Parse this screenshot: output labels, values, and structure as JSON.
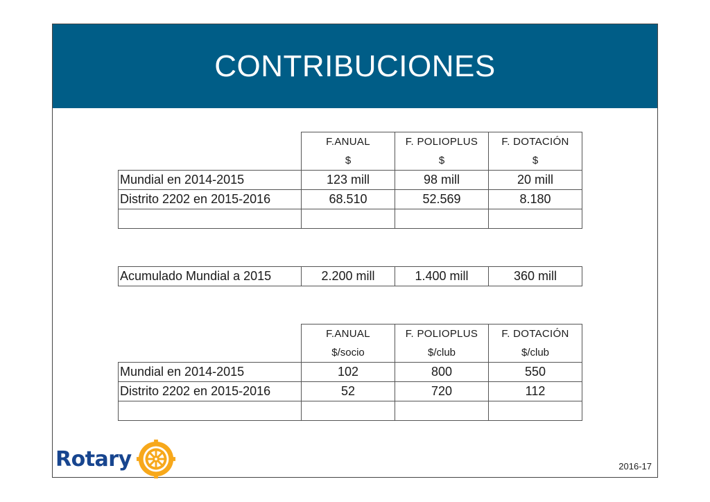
{
  "slide": {
    "title": "CONTRIBUCIONES",
    "year": "2016-17",
    "logo_text": "Rotary",
    "accent_color": "#005d87",
    "logo_color": "#17458f",
    "wheel_color": "#f7a81b"
  },
  "table1": {
    "headers": [
      {
        "name": "F.ANUAL",
        "unit": "$"
      },
      {
        "name": "F. POLIOPLUS",
        "unit": "$"
      },
      {
        "name": "F. DOTACIÓN",
        "unit": "$"
      }
    ],
    "rows": [
      {
        "label": "Mundial en 2014-2015",
        "values": [
          "123 mill",
          "98 mill",
          "20 mill"
        ]
      },
      {
        "label": "Distrito 2202 en 2015-2016",
        "values": [
          "68.510",
          "52.569",
          "8.180"
        ]
      },
      {
        "label": "",
        "values": [
          "",
          "",
          ""
        ]
      }
    ]
  },
  "table2": {
    "rows": [
      {
        "label": "Acumulado Mundial a 2015",
        "values": [
          "2.200 mill",
          "1.400 mill",
          "360 mill"
        ]
      }
    ]
  },
  "table3": {
    "headers": [
      {
        "name": "F.ANUAL",
        "unit": "$/socio"
      },
      {
        "name": "F. POLIOPLUS",
        "unit": "$/club"
      },
      {
        "name": "F. DOTACIÓN",
        "unit": "$/club"
      }
    ],
    "rows": [
      {
        "label": "Mundial en 2014-2015",
        "values": [
          "102",
          "800",
          "550"
        ]
      },
      {
        "label": "Distrito 2202 en 2015-2016",
        "values": [
          "52",
          "720",
          "112"
        ]
      },
      {
        "label": "",
        "values": [
          "",
          "",
          ""
        ]
      }
    ]
  }
}
